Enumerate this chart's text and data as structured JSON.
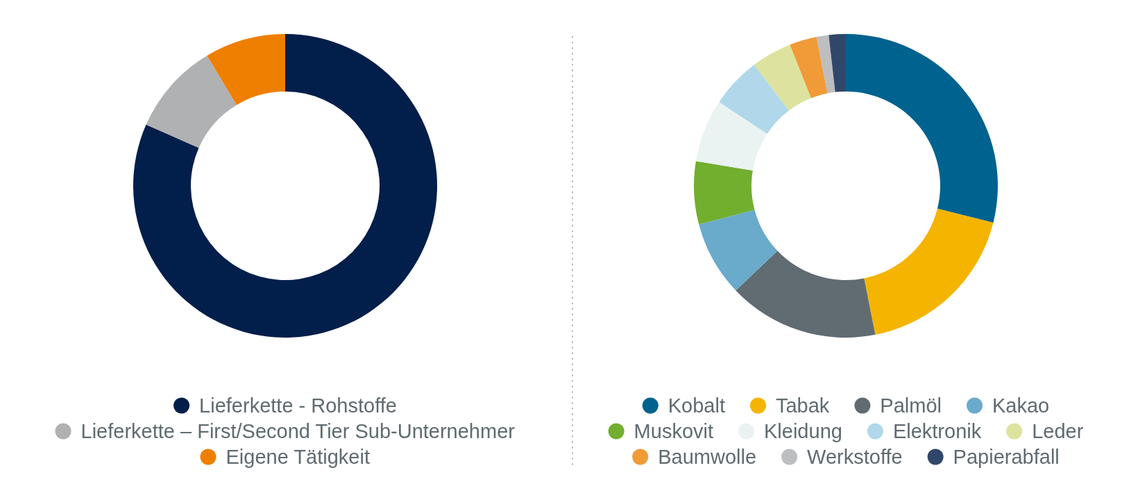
{
  "chart_data": [
    {
      "type": "donut",
      "categories": [
        "Lieferkette - Rohstoffe",
        "Lieferkette – First/Second Tier Sub-Unternehmer",
        "Eigene Tätigkeit"
      ],
      "values": [
        81.6,
        9.8,
        8.6
      ],
      "colors": [
        "#021e4a",
        "#b0b1b2",
        "#ee7f00"
      ],
      "legend": "bottom"
    },
    {
      "type": "donut",
      "categories": [
        "Kobalt",
        "Tabak",
        "Palmöl",
        "Kakao",
        "Muskovit",
        "Kleidung",
        "Elektronik",
        "Leder",
        "Baumwolle",
        "Werkstoffe",
        "Papierabfall"
      ],
      "values": [
        28.9,
        18,
        16,
        8,
        6.7,
        6.7,
        5.4,
        4.3,
        2.9,
        1.3,
        1.8
      ],
      "colors": [
        "#00628f",
        "#f5b400",
        "#606c72",
        "#6aaacb",
        "#72af2f",
        "#eaf3f2",
        "#b0d8ea",
        "#dde39f",
        "#f09a38",
        "#bdbec0",
        "#31476a"
      ],
      "legend": "bottom"
    }
  ]
}
